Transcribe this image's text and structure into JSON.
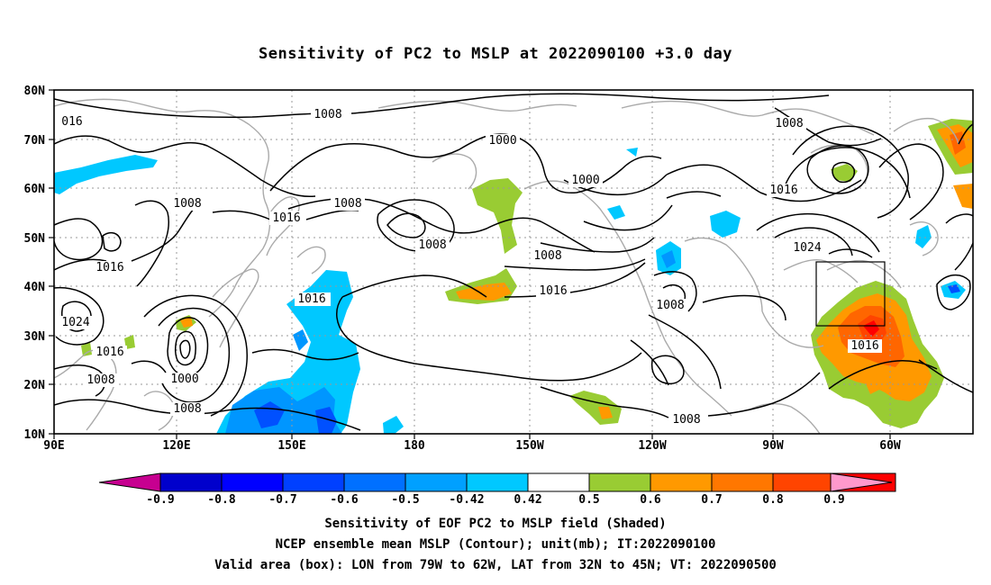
{
  "title": "Sensitivity of PC2 to MSLP at 2022090100 +3.0 day",
  "map": {
    "lat_labels": [
      "80N",
      "70N",
      "60N",
      "50N",
      "40N",
      "30N",
      "20N",
      "10N"
    ],
    "lon_labels": [
      "90E",
      "120E",
      "150E",
      "180",
      "150W",
      "120W",
      "90W",
      "60W"
    ],
    "contour_labels": [
      {
        "text": "1008"
      },
      {
        "text": "016"
      },
      {
        "text": "1000"
      },
      {
        "text": "1008"
      },
      {
        "text": "1000"
      },
      {
        "text": "1008"
      },
      {
        "text": "1016"
      },
      {
        "text": "1008"
      },
      {
        "text": "1016"
      },
      {
        "text": "1008"
      },
      {
        "text": "1008"
      },
      {
        "text": "1016"
      },
      {
        "text": "1016"
      },
      {
        "text": "1024"
      },
      {
        "text": "1016"
      },
      {
        "text": "1024"
      },
      {
        "text": "1016"
      },
      {
        "text": "1000"
      },
      {
        "text": "1008"
      },
      {
        "text": "1008"
      },
      {
        "text": "1016"
      },
      {
        "text": "1008"
      },
      {
        "text": "1016"
      },
      {
        "text": "1008"
      }
    ],
    "colors": {
      "contour": "#000000",
      "coast": "#aaaaaa",
      "lightblue": "#00c8ff",
      "midblue": "#0096ff",
      "blue": "#0050ff",
      "green": "#99cc33",
      "orange": "#ff9900",
      "darkorange": "#ff6600",
      "red": "#ff0000"
    }
  },
  "colorbar": {
    "labels": [
      "-0.9",
      "-0.8",
      "-0.7",
      "-0.6",
      "-0.5",
      "-0.42",
      "0.42",
      "0.5",
      "0.6",
      "0.7",
      "0.8",
      "0.9"
    ],
    "colors": [
      "#c70090",
      "#0000cc",
      "#0000ff",
      "#0040ff",
      "#0070ff",
      "#00a0ff",
      "#00c8ff",
      "#ffffff",
      "#99cc33",
      "#ff9900",
      "#ff7700",
      "#ff4400",
      "#ff0000",
      "#ff99cc"
    ]
  },
  "captions": {
    "line1": "Sensitivity of EOF PC2 to MSLP field (Shaded)",
    "line2": "NCEP ensemble mean MSLP (Contour); unit(mb); IT:2022090100",
    "line3": "Valid area (box): LON from 79W to 62W, LAT from 32N to 45N; VT: 2022090500"
  }
}
